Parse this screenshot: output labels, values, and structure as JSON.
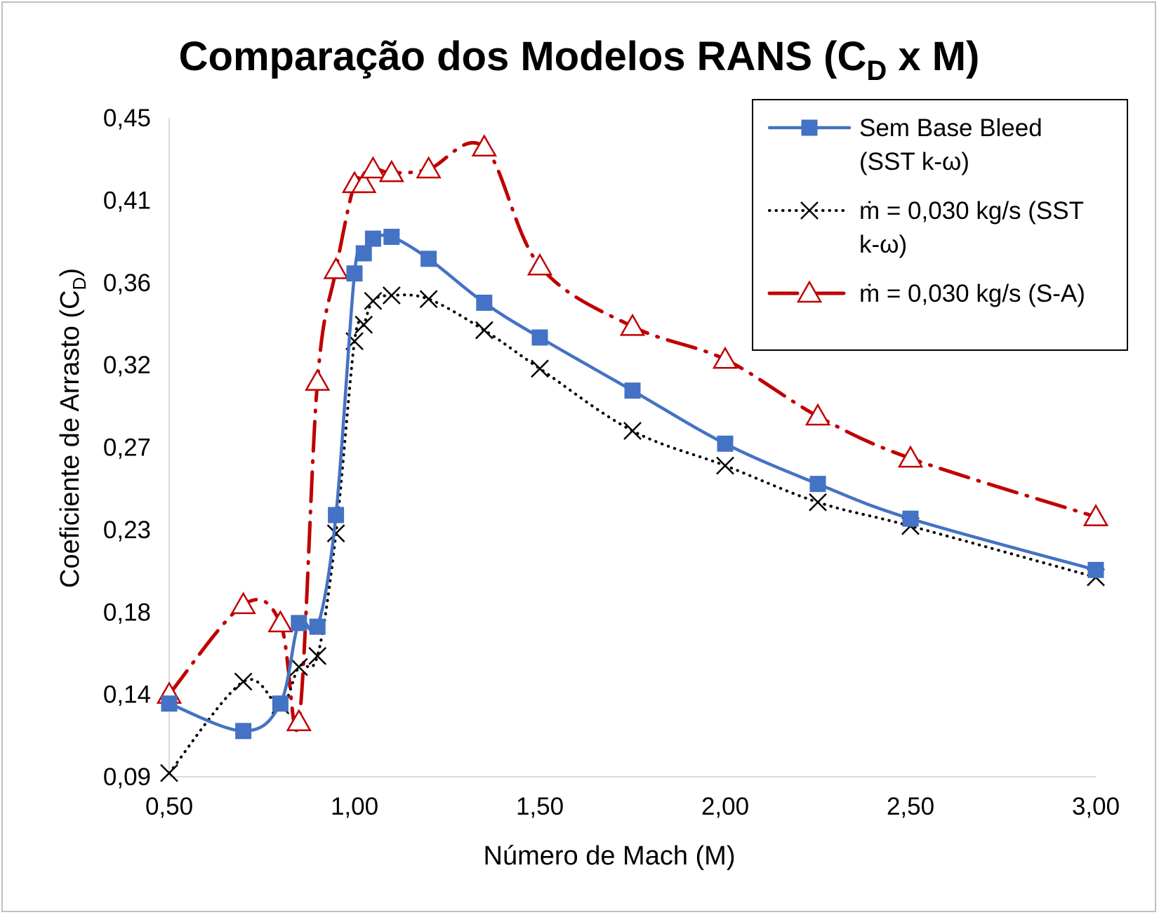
{
  "chart_data": {
    "type": "line",
    "title": {
      "main": "Comparação dos Modelos RANS (C",
      "sub": "D",
      "rest": " x M)"
    },
    "xlabel": "Número de Mach (M)",
    "ylabel": {
      "main": "Coeficiente de Arrasto (C",
      "sub": "D",
      "rest": ")"
    },
    "xlim": [
      0.5,
      3.0
    ],
    "ylim": [
      0.09,
      0.45
    ],
    "x_ticks": [
      0.5,
      1.0,
      1.5,
      2.0,
      2.5,
      3.0
    ],
    "x_tick_labels": [
      "0,50",
      "1,00",
      "1,50",
      "2,00",
      "2,50",
      "3,00"
    ],
    "y_ticks": [
      0.09,
      0.135,
      0.18,
      0.225,
      0.27,
      0.315,
      0.36,
      0.405,
      0.45
    ],
    "y_tick_labels": [
      "0,09",
      "0,14",
      "0,18",
      "0,23",
      "0,27",
      "0,32",
      "0,36",
      "0,41",
      "0,45"
    ],
    "grid": false,
    "legend_position": "top-right",
    "series": [
      {
        "name": "Sem Base Bleed (SST k-ω)",
        "legend_lines": [
          "Sem Base Bleed",
          "(SST k-ω)"
        ],
        "color": "#4472c4",
        "line_style": "solid",
        "marker": "square",
        "x": [
          0.5,
          0.7,
          0.8,
          0.85,
          0.9,
          0.95,
          1.0,
          1.025,
          1.05,
          1.1,
          1.2,
          1.35,
          1.5,
          1.75,
          2.0,
          2.25,
          2.5,
          3.0
        ],
        "y": [
          0.13,
          0.115,
          0.13,
          0.174,
          0.172,
          0.233,
          0.365,
          0.376,
          0.384,
          0.385,
          0.373,
          0.349,
          0.33,
          0.301,
          0.272,
          0.25,
          0.231,
          0.203
        ]
      },
      {
        "name": "ṁ = 0,030 kg/s (SST k-ω)",
        "legend_lines": [
          "ṁ = 0,030 kg/s (SST",
          "k-ω)"
        ],
        "color": "#000000",
        "line_style": "dotted",
        "marker": "x",
        "x": [
          0.5,
          0.7,
          0.8,
          0.85,
          0.9,
          0.95,
          1.0,
          1.025,
          1.05,
          1.1,
          1.2,
          1.35,
          1.5,
          1.75,
          2.0,
          2.25,
          2.5,
          3.0
        ],
        "y": [
          0.092,
          0.142,
          0.129,
          0.15,
          0.156,
          0.223,
          0.328,
          0.337,
          0.35,
          0.353,
          0.351,
          0.334,
          0.313,
          0.279,
          0.26,
          0.24,
          0.227,
          0.199
        ]
      },
      {
        "name": "ṁ = 0,030 kg/s (S-A)",
        "legend_lines": [
          "ṁ = 0,030 kg/s (S-A)"
        ],
        "color": "#c00000",
        "line_style": "dash-dot",
        "marker": "triangle",
        "x": [
          0.5,
          0.7,
          0.8,
          0.85,
          0.9,
          0.95,
          1.0,
          1.025,
          1.05,
          1.1,
          1.2,
          1.35,
          1.5,
          1.75,
          2.0,
          2.25,
          2.5,
          3.0
        ],
        "y": [
          0.135,
          0.184,
          0.174,
          0.12,
          0.306,
          0.367,
          0.414,
          0.414,
          0.422,
          0.42,
          0.422,
          0.434,
          0.369,
          0.336,
          0.318,
          0.287,
          0.264,
          0.232
        ]
      }
    ]
  }
}
